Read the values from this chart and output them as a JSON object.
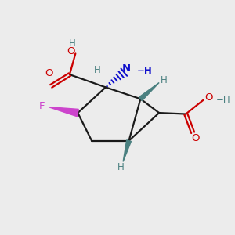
{
  "bg_color": "#ececec",
  "atom_color_CH": "#4a8080",
  "atom_color_N": "#1010cc",
  "atom_color_O": "#cc0000",
  "atom_color_F": "#cc44cc",
  "atom_color_bond": "#1a1a1a",
  "figsize": [
    3.0,
    3.0
  ],
  "dpi": 100,
  "xlim": [
    0,
    10
  ],
  "ylim": [
    0,
    10
  ]
}
